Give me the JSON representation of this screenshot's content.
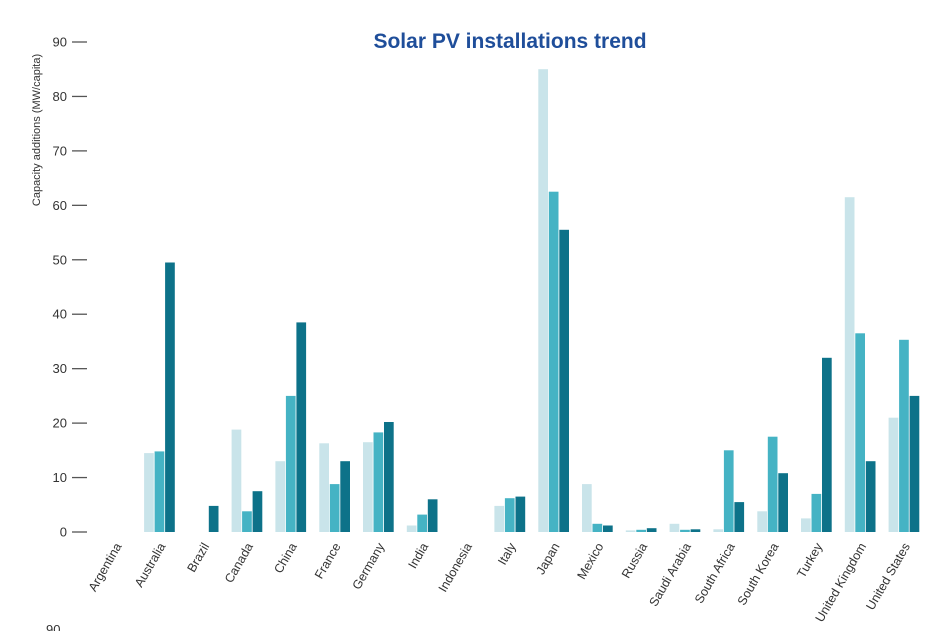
{
  "chart_data": {
    "type": "bar",
    "title": "Solar PV installations trend",
    "ylabel": "Capacity additions (MW/capita)",
    "xlabel": "",
    "ylim": [
      0,
      90
    ],
    "yticks": [
      0,
      10,
      20,
      30,
      40,
      50,
      60,
      70,
      80,
      90
    ],
    "grid": false,
    "legend": "none",
    "categories": [
      "Argentina",
      "Australia",
      "Brazil",
      "Canada",
      "China",
      "France",
      "Germany",
      "India",
      "Indonesia",
      "Italy",
      "Japan",
      "Mexico",
      "Russia",
      "Saudi Arabia",
      "South Africa",
      "South Korea",
      "Turkey",
      "United Kingdom",
      "United States"
    ],
    "series": [
      {
        "color": "#c9e4ea",
        "values": [
          0,
          14.5,
          0,
          18.8,
          13,
          16.3,
          16.5,
          1.2,
          0,
          4.8,
          85,
          8.8,
          0.3,
          1.5,
          0.5,
          3.8,
          2.5,
          61.5,
          21
        ]
      },
      {
        "color": "#45b3c4",
        "values": [
          0,
          14.8,
          0,
          3.8,
          25,
          8.8,
          18.3,
          3.2,
          0,
          6.2,
          62.5,
          1.5,
          0.4,
          0.4,
          15,
          17.5,
          7,
          36.5,
          35.3
        ]
      },
      {
        "color": "#0d7289",
        "values": [
          0,
          49.5,
          4.8,
          7.5,
          38.5,
          13,
          20.2,
          6,
          0,
          6.5,
          55.5,
          1.2,
          0.7,
          0.5,
          5.5,
          10.8,
          32,
          13,
          25
        ]
      }
    ],
    "below_chart_tick": "90"
  },
  "colors": {
    "title": "#1f4e9a",
    "axis": "#555555"
  }
}
